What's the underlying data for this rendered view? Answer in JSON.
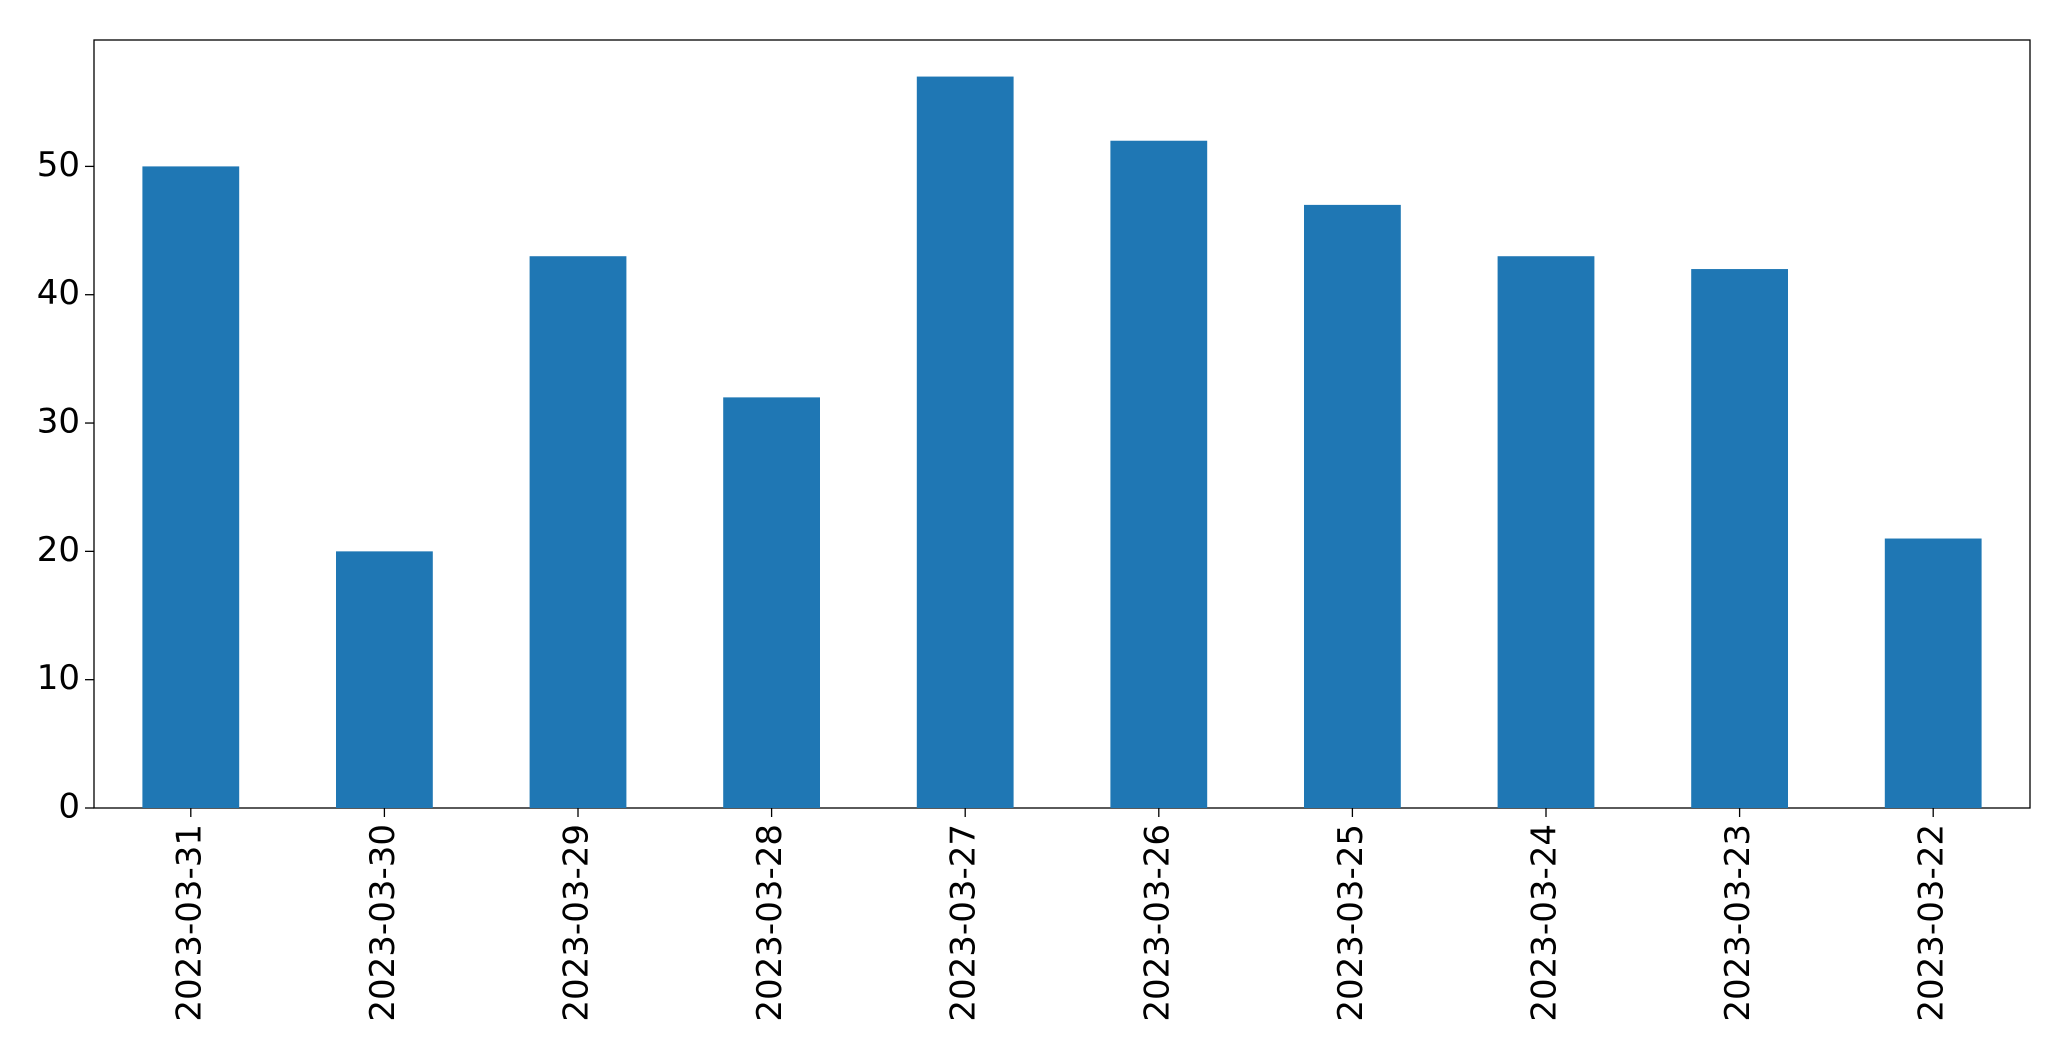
{
  "chart_data": {
    "type": "bar",
    "categories": [
      "2023-03-31",
      "2023-03-30",
      "2023-03-29",
      "2023-03-28",
      "2023-03-27",
      "2023-03-26",
      "2023-03-25",
      "2023-03-24",
      "2023-03-23",
      "2023-03-22"
    ],
    "values": [
      50,
      20,
      43,
      32,
      57,
      52,
      47,
      43,
      42,
      21
    ],
    "color": "#1f77b4",
    "ylim": [
      0,
      59.85
    ],
    "yticks": [
      0,
      10,
      20,
      30,
      40,
      50
    ],
    "grid": false
  }
}
